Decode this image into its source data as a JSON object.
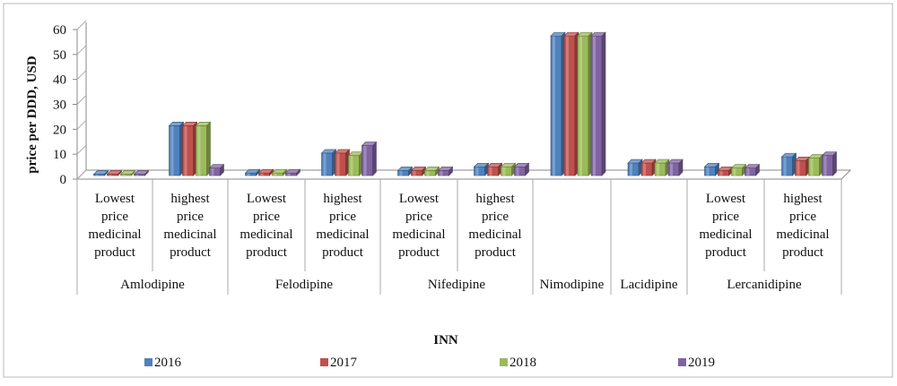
{
  "chart_data": {
    "type": "bar",
    "title": "",
    "ylabel": "price per DDD, USD",
    "xlabel": "INN",
    "ylim": [
      0,
      60
    ],
    "yticks": [
      0,
      10,
      20,
      30,
      40,
      50,
      60
    ],
    "grid": false,
    "legend": "bottom",
    "groups": [
      {
        "name": "Amlodipine",
        "subcategories": [
          "Lowest price medicinal product",
          "highest price medicinal product"
        ]
      },
      {
        "name": "Felodipine",
        "subcategories": [
          "Lowest price medicinal product",
          "highest price medicinal product"
        ]
      },
      {
        "name": "Nifedipine",
        "subcategories": [
          "Lowest price medicinal product",
          "highest price medicinal product"
        ]
      },
      {
        "name": "Nimodipine",
        "subcategories": [
          ""
        ]
      },
      {
        "name": "Lacidipine",
        "subcategories": [
          ""
        ]
      },
      {
        "name": "Lercanidipine",
        "subcategories": [
          "Lowest price medicinal product",
          "highest price medicinal product"
        ]
      }
    ],
    "series": [
      {
        "name": "2016",
        "color": "#4f81bd",
        "values": [
          0.5,
          20,
          1,
          9,
          2,
          3.5,
          56,
          5,
          3.5,
          7.5
        ]
      },
      {
        "name": "2017",
        "color": "#c0504d",
        "values": [
          0.5,
          20,
          1,
          9,
          2,
          3.5,
          56,
          5,
          2,
          6
        ]
      },
      {
        "name": "2018",
        "color": "#9bbb59",
        "values": [
          0.5,
          20,
          1,
          8,
          2,
          3.5,
          56,
          5,
          3,
          7
        ]
      },
      {
        "name": "2019",
        "color": "#8064a2",
        "values": [
          0.5,
          3,
          1,
          12,
          2,
          3.5,
          56,
          5,
          3,
          8
        ]
      }
    ]
  }
}
